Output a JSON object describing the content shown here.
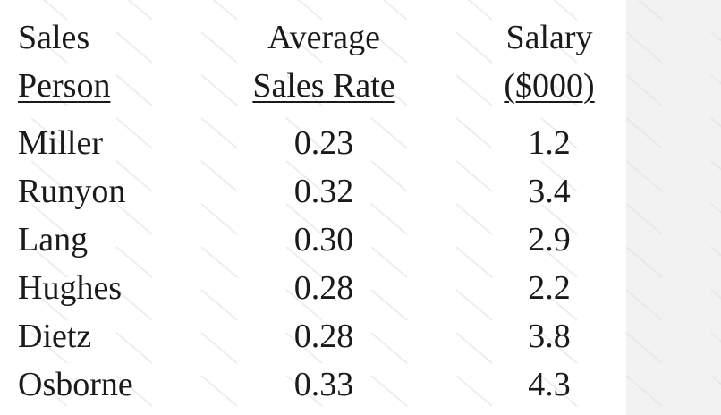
{
  "watermark": "CramKey",
  "table": {
    "headers": [
      {
        "line1": "Sales",
        "line2": "Person"
      },
      {
        "line1": "Average",
        "line2": "Sales Rate"
      },
      {
        "line1": "Salary",
        "line2": "($000)"
      }
    ],
    "rows": [
      {
        "name": "Miller",
        "rate": "0.23",
        "salary": "1.2"
      },
      {
        "name": "Runyon",
        "rate": "0.32",
        "salary": "3.4"
      },
      {
        "name": "Lang",
        "rate": "0.30",
        "salary": "2.9"
      },
      {
        "name": "Hughes",
        "rate": "0.28",
        "salary": "2.2"
      },
      {
        "name": "Dietz",
        "rate": "0.28",
        "salary": "3.8"
      },
      {
        "name": "Osborne",
        "rate": "0.33",
        "salary": "4.3"
      }
    ]
  }
}
